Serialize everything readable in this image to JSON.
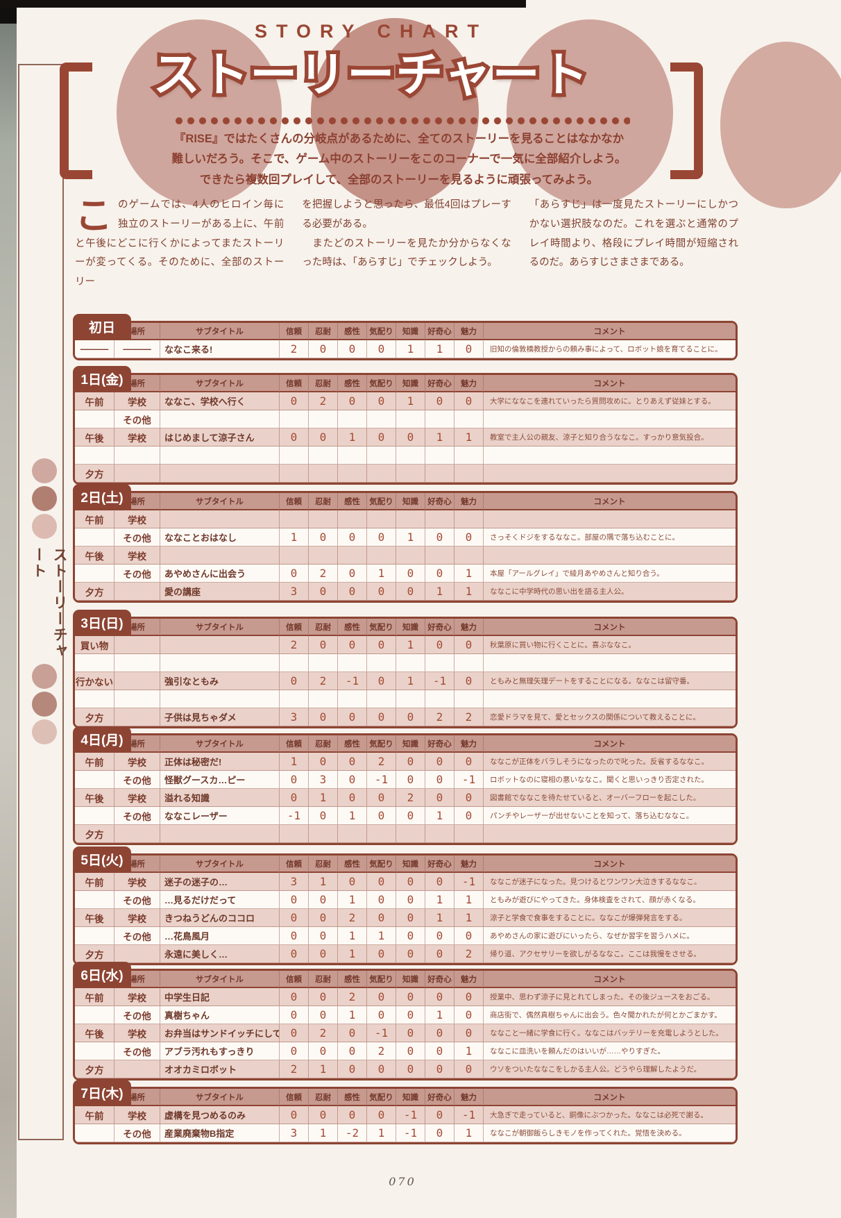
{
  "page": {
    "title_en": "STORY CHART",
    "title_jp": "ストーリーチャート",
    "lede": "『RISE』ではたくさんの分岐点があるために、全てのストーリーを見ることはなかなか\n難しいだろう。そこで、ゲーム中のストーリーをこのコーナーで一気に全部紹介しよう。\nできたら複数回プレイして、全部のストーリーを見るように頑張ってみよう。",
    "sidebar_label": "ストーリーチャート",
    "page_number": "070"
  },
  "intro": {
    "dropcap": "こ",
    "col1": "のゲームでは、4人のヒロイン毎に独立のストーリーがある上に、午前と午後にどこに行くかによってまたストーリーが変ってくる。そのために、全部のストーリー",
    "col2": "を把握しようと思ったら、最低4回はプレーする必要がある。\n　またどのストーリーを見たか分からなくなった時は、「あらすじ」でチェックしよう。",
    "col3": "「あらすじ」は一度見たストーリーにしかつかない選択肢なのだ。これを選ぶと通常のプレイ時間より、格段にプレイ時間が短縮されるのだ。あらすじさまさまである。"
  },
  "table_headers": [
    "場所",
    "サブタイトル",
    "信頼",
    "忍耐",
    "感性",
    "気配り",
    "知識",
    "好奇心",
    "魅力",
    "コメント"
  ],
  "days": [
    {
      "label": "初日",
      "rows": [
        {
          "time": "———",
          "place": "———",
          "subtitle": "ななこ来る!",
          "stats": [
            "2",
            "0",
            "0",
            "0",
            "1",
            "1",
            "0"
          ],
          "comment": "旧知の倫敦橋教授からの頼み事によって、ロボット娘を育てることに。"
        }
      ]
    },
    {
      "label": "1日(金)",
      "rows": [
        {
          "time": "午前",
          "place": "学校",
          "subtitle": "ななこ、学校へ行く",
          "stats": [
            "0",
            "2",
            "0",
            "0",
            "1",
            "0",
            "0"
          ],
          "comment": "大学にななこを連れていったら質問攻めに。とりあえず従妹とする。"
        },
        {
          "time": "",
          "place": "その他",
          "subtitle": "",
          "stats": [
            "",
            "",
            "",
            "",
            "",
            "",
            ""
          ],
          "comment": ""
        },
        {
          "time": "午後",
          "place": "学校",
          "subtitle": "はじめまして涼子さん",
          "stats": [
            "0",
            "0",
            "1",
            "0",
            "0",
            "1",
            "1"
          ],
          "comment": "教室で主人公の親友、涼子と知り合うななこ。すっかり意気投合。"
        },
        {
          "time": "",
          "place": "",
          "subtitle": "",
          "stats": [
            "",
            "",
            "",
            "",
            "",
            "",
            ""
          ],
          "comment": ""
        },
        {
          "time": "夕方",
          "place": "",
          "subtitle": "",
          "stats": [
            "",
            "",
            "",
            "",
            "",
            "",
            ""
          ],
          "comment": ""
        }
      ]
    },
    {
      "label": "2日(土)",
      "rows": [
        {
          "time": "午前",
          "place": "学校",
          "subtitle": "",
          "stats": [
            "",
            "",
            "",
            "",
            "",
            "",
            ""
          ],
          "comment": ""
        },
        {
          "time": "",
          "place": "その他",
          "subtitle": "ななことおはなし",
          "stats": [
            "1",
            "0",
            "0",
            "0",
            "1",
            "0",
            "0"
          ],
          "comment": "さっそくドジをするななこ。部屋の隅で落ち込むことに。"
        },
        {
          "time": "午後",
          "place": "学校",
          "subtitle": "",
          "stats": [
            "",
            "",
            "",
            "",
            "",
            "",
            ""
          ],
          "comment": ""
        },
        {
          "time": "",
          "place": "その他",
          "subtitle": "あやめさんに出会う",
          "stats": [
            "0",
            "2",
            "0",
            "1",
            "0",
            "0",
            "1"
          ],
          "comment": "本屋「アールグレイ」で綾月あやめさんと知り合う。"
        },
        {
          "time": "夕方",
          "place": "",
          "subtitle": "愛の講座",
          "stats": [
            "3",
            "0",
            "0",
            "0",
            "0",
            "1",
            "1"
          ],
          "comment": "ななこに中学時代の思い出を語る主人公。"
        }
      ]
    },
    {
      "label": "3日(日)",
      "rows": [
        {
          "time": "買い物",
          "place": "",
          "subtitle": "",
          "stats": [
            "2",
            "0",
            "0",
            "0",
            "1",
            "0",
            "0"
          ],
          "comment": "秋葉原に買い物に行くことに。喜ぶななこ。"
        },
        {
          "time": "",
          "place": "",
          "subtitle": "",
          "stats": [
            "",
            "",
            "",
            "",
            "",
            "",
            ""
          ],
          "comment": ""
        },
        {
          "time": "行かない",
          "place": "",
          "subtitle": "強引なともみ",
          "stats": [
            "0",
            "2",
            "-1",
            "0",
            "1",
            "-1",
            "0"
          ],
          "comment": "ともみと無理矢理デートをすることになる。ななこは留守番。"
        },
        {
          "time": "",
          "place": "",
          "subtitle": "",
          "stats": [
            "",
            "",
            "",
            "",
            "",
            "",
            ""
          ],
          "comment": ""
        },
        {
          "time": "夕方",
          "place": "",
          "subtitle": "子供は見ちゃダメ",
          "stats": [
            "3",
            "0",
            "0",
            "0",
            "0",
            "2",
            "2"
          ],
          "comment": "恋愛ドラマを見て、愛とセックスの関係について教えることに。"
        }
      ]
    },
    {
      "label": "4日(月)",
      "rows": [
        {
          "time": "午前",
          "place": "学校",
          "subtitle": "正体は秘密だ!",
          "stats": [
            "1",
            "0",
            "0",
            "2",
            "0",
            "0",
            "0"
          ],
          "comment": "ななこが正体をバラしそうになったので叱った。反省するななこ。"
        },
        {
          "time": "",
          "place": "その他",
          "subtitle": "怪獣グースカ…ピー",
          "stats": [
            "0",
            "3",
            "0",
            "-1",
            "0",
            "0",
            "-1"
          ],
          "comment": "ロボットなのに寝相の悪いななこ。聞くと思いっきり否定された。"
        },
        {
          "time": "午後",
          "place": "学校",
          "subtitle": "溢れる知識",
          "stats": [
            "0",
            "1",
            "0",
            "0",
            "2",
            "0",
            "0"
          ],
          "comment": "図書館でななこを待たせていると、オーバーフローを起こした。"
        },
        {
          "time": "",
          "place": "その他",
          "subtitle": "ななこレーザー",
          "stats": [
            "-1",
            "0",
            "1",
            "0",
            "0",
            "1",
            "0"
          ],
          "comment": "パンチやレーザーが出せないことを知って、落ち込むななこ。"
        },
        {
          "time": "夕方",
          "place": "",
          "subtitle": "",
          "stats": [
            "",
            "",
            "",
            "",
            "",
            "",
            ""
          ],
          "comment": ""
        }
      ]
    },
    {
      "label": "5日(火)",
      "rows": [
        {
          "time": "午前",
          "place": "学校",
          "subtitle": "迷子の迷子の…",
          "stats": [
            "3",
            "1",
            "0",
            "0",
            "0",
            "0",
            "-1"
          ],
          "comment": "ななこが迷子になった。見つけるとワンワン大泣きするななこ。"
        },
        {
          "time": "",
          "place": "その他",
          "subtitle": "…見るだけだって",
          "stats": [
            "0",
            "0",
            "1",
            "0",
            "0",
            "1",
            "1"
          ],
          "comment": "ともみが遊びにやってきた。身体検査をされて、顔が赤くなる。"
        },
        {
          "time": "午後",
          "place": "学校",
          "subtitle": "きつねうどんのココロ",
          "stats": [
            "0",
            "0",
            "2",
            "0",
            "0",
            "1",
            "1"
          ],
          "comment": "涼子と学食で食事をすることに。ななこが爆弾発言をする。"
        },
        {
          "time": "",
          "place": "その他",
          "subtitle": "…花鳥風月",
          "stats": [
            "0",
            "0",
            "1",
            "1",
            "0",
            "0",
            "0"
          ],
          "comment": "あやめさんの家に遊びにいったら、なぜか習字を習うハメに。"
        },
        {
          "time": "夕方",
          "place": "",
          "subtitle": "永遠に美しく…",
          "stats": [
            "0",
            "0",
            "1",
            "0",
            "0",
            "0",
            "2"
          ],
          "comment": "帰り道、アクセサリーを欲しがるななこ。ここは我慢をさせる。"
        }
      ]
    },
    {
      "label": "6日(水)",
      "rows": [
        {
          "time": "午前",
          "place": "学校",
          "subtitle": "中学生日記",
          "stats": [
            "0",
            "0",
            "2",
            "0",
            "0",
            "0",
            "0"
          ],
          "comment": "授業中、思わず涼子に見とれてしまった。その後ジュースをおごる。"
        },
        {
          "time": "",
          "place": "その他",
          "subtitle": "真樹ちゃん",
          "stats": [
            "0",
            "0",
            "1",
            "0",
            "0",
            "1",
            "0"
          ],
          "comment": "商店街で、偶然真樹ちゃんに出会う。色々聞かれたが何とかごまかす。"
        },
        {
          "time": "午後",
          "place": "学校",
          "subtitle": "お弁当はサンドイッチにしてね",
          "stats": [
            "0",
            "2",
            "0",
            "-1",
            "0",
            "0",
            "0"
          ],
          "comment": "ななこと一緒に学食に行く。ななこはバッテリーを充電しようとした。"
        },
        {
          "time": "",
          "place": "その他",
          "subtitle": "アブラ汚れもすっきり",
          "stats": [
            "0",
            "0",
            "0",
            "2",
            "0",
            "0",
            "1"
          ],
          "comment": "ななこに皿洗いを頼んだのはいいが……やりすぎた。"
        },
        {
          "time": "夕方",
          "place": "",
          "subtitle": "オオカミロボット",
          "stats": [
            "2",
            "1",
            "0",
            "0",
            "0",
            "0",
            "0"
          ],
          "comment": "ウソをついたななこをしかる主人公。どうやら理解したようだ。"
        }
      ]
    },
    {
      "label": "7日(木)",
      "rows": [
        {
          "time": "午前",
          "place": "学校",
          "subtitle": "虚構を見つめるのみ",
          "stats": [
            "0",
            "0",
            "0",
            "0",
            "-1",
            "0",
            "-1"
          ],
          "comment": "大急ぎで走っていると、銅像にぶつかった。ななこは必死で謝る。"
        },
        {
          "time": "",
          "place": "その他",
          "subtitle": "産業廃棄物B指定",
          "stats": [
            "3",
            "1",
            "-2",
            "1",
            "-1",
            "0",
            "1"
          ],
          "comment": "ななこが朝御飯らしきモノを作ってくれた。覚悟を決める。"
        }
      ]
    }
  ]
}
